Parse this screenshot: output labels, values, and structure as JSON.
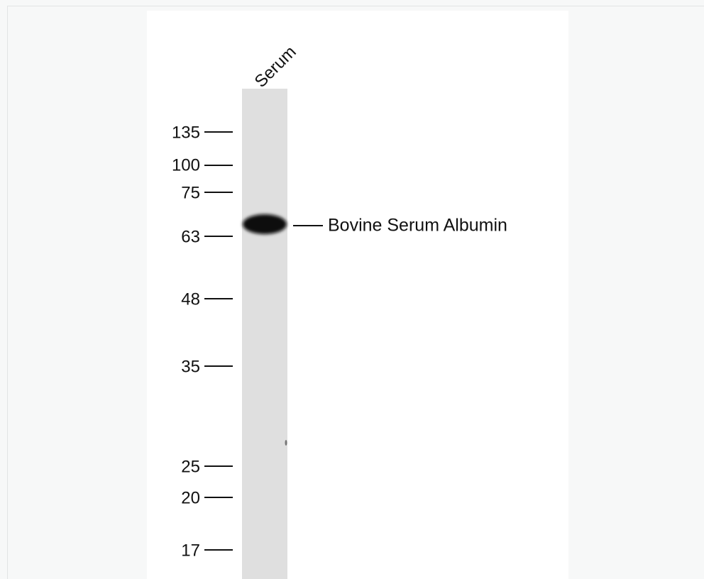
{
  "lane_label": "Serum",
  "markers": [
    "135",
    "100",
    "75",
    "63",
    "48",
    "35",
    "25",
    "20",
    "17"
  ],
  "band_label": "Bovine Serum Albumin"
}
